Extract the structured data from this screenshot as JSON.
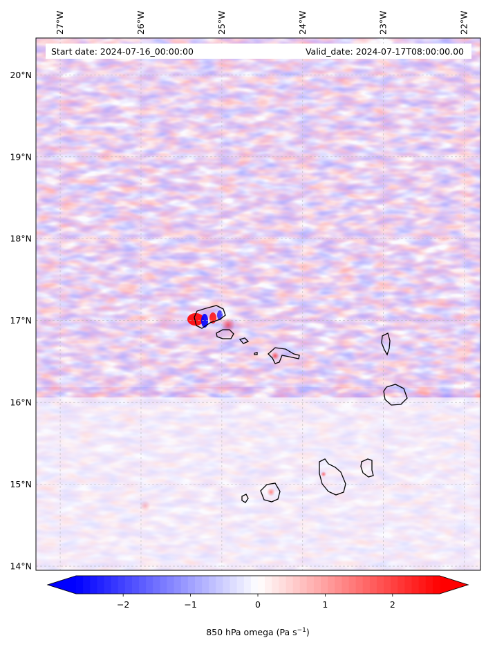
{
  "header": {
    "start_date": "Start date: 2024-07-16_00:00:00",
    "valid_date": "Valid_date: 2024-07-17T08:00:00.00"
  },
  "map": {
    "longitude_labels": [
      "27°W",
      "26°W",
      "25°W",
      "24°W",
      "23°W",
      "22°W"
    ],
    "latitude_labels": [
      "20°N",
      "19°N",
      "18°N",
      "17°N",
      "16°N",
      "15°N",
      "14°N"
    ],
    "extent": {
      "lon_min": -27.3,
      "lon_max": -21.8,
      "lat_min": 13.95,
      "lat_max": 20.45
    },
    "gridlines": true,
    "field": "850 hPa omega",
    "islands": [
      "santo-antao",
      "sao-vicente",
      "santa-luzia",
      "branco",
      "sao-nicolau",
      "sal",
      "boa-vista",
      "maio",
      "santiago",
      "fogo",
      "brava"
    ]
  },
  "colorbar": {
    "label": "850 hPa omega (Pa s",
    "label_sup": "−1",
    "label_close": ")",
    "ticks": [
      "−2",
      "−1",
      "0",
      "1",
      "2"
    ],
    "vmin": -2.7,
    "vmax": 2.7,
    "colormap": "bwr",
    "extend": "both",
    "colors": {
      "negative": "#0000ff",
      "neutral": "#ffffff",
      "positive": "#ff0000"
    }
  }
}
